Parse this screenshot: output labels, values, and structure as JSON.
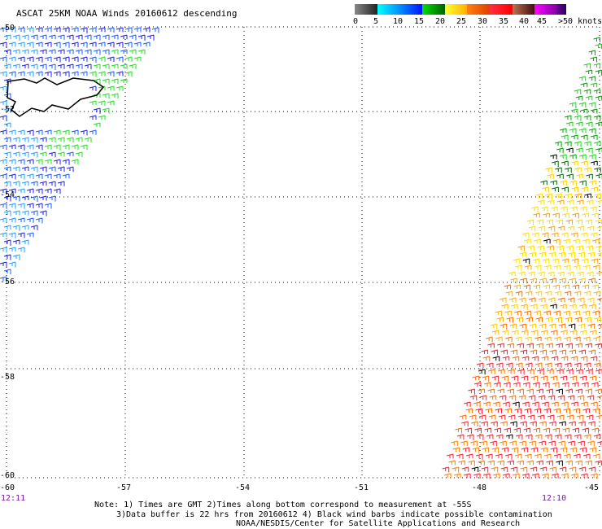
{
  "title": "ASCAT 25KM NOAA Winds 20160612 descending",
  "colorbar": {
    "labels": [
      "0",
      "5",
      "10",
      "15",
      "20",
      "25",
      "30",
      "35",
      "40",
      "45",
      ">50 knots"
    ],
    "colors": [
      "#555555",
      "#00b8ff",
      "#0040ff",
      "#00a000",
      "#ffd000",
      "#ff7000",
      "#ff1a30",
      "#8a4020",
      "#c000e0",
      "#300060"
    ]
  },
  "lat_labels": [
    "-50",
    "-52",
    "-54",
    "-56",
    "-58",
    "-60"
  ],
  "lon_labels": [
    "-60",
    "-57",
    "-54",
    "-51",
    "-48",
    "-45"
  ],
  "times": {
    "left": "12:11",
    "right": "12:10"
  },
  "notes": [
    "Note: 1) Times are GMT 2)Times along bottom correspond to measurement at -55S",
    "3)Data buffer is 22 hrs from 20160612 4) Black wind barbs indicate possible contamination",
    "NOAA/NESDIS/Center for Satellite Applications and Research"
  ]
}
